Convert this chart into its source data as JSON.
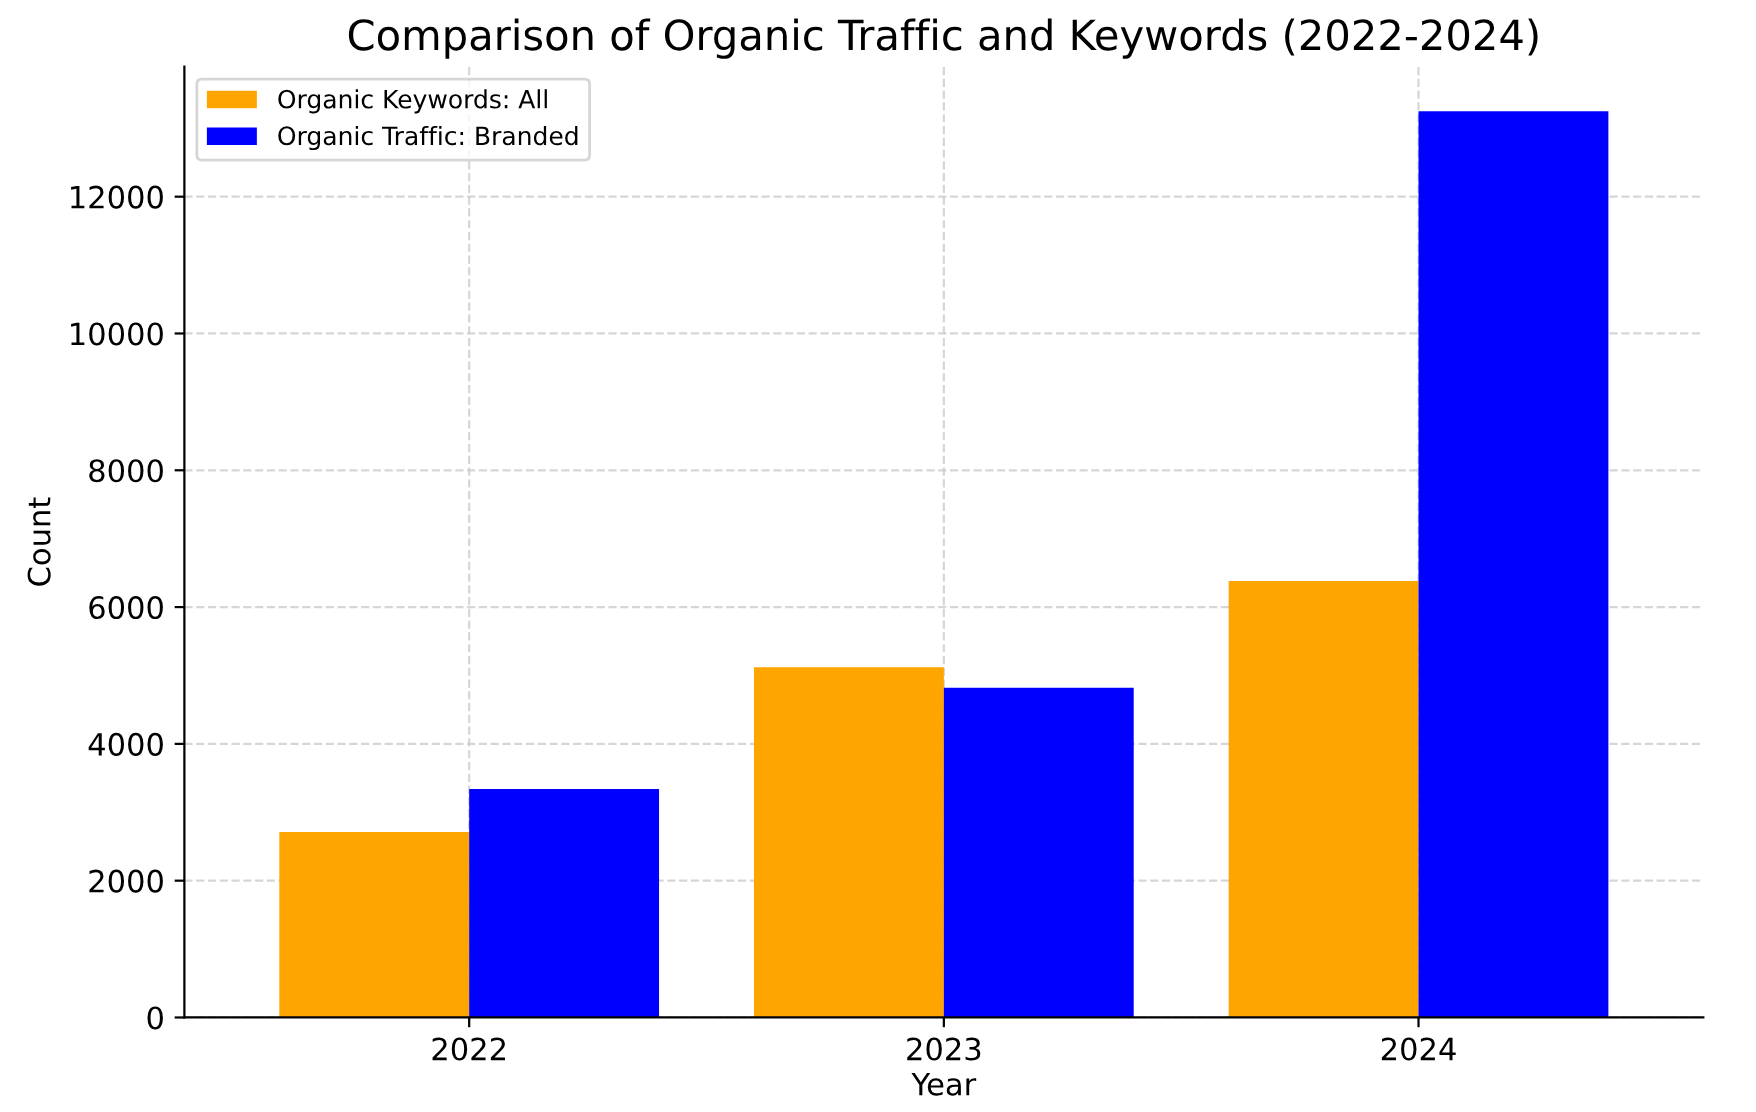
{
  "chart_data": {
    "type": "bar",
    "title": "Comparison of Organic Traffic and Keywords (2022-2024)",
    "xlabel": "Year",
    "ylabel": "Count",
    "categories": [
      "2022",
      "2023",
      "2024"
    ],
    "series": [
      {
        "name": "Organic Keywords: All",
        "color": "#ffa500",
        "values": [
          2710,
          5120,
          6380
        ]
      },
      {
        "name": "Organic Traffic: Branded",
        "color": "#0000ff",
        "values": [
          3340,
          4820,
          13250
        ]
      }
    ],
    "ylim": [
      0,
      13900
    ],
    "yticks": [
      0,
      2000,
      4000,
      6000,
      8000,
      10000,
      12000
    ],
    "grid": true,
    "legend": "top left"
  }
}
